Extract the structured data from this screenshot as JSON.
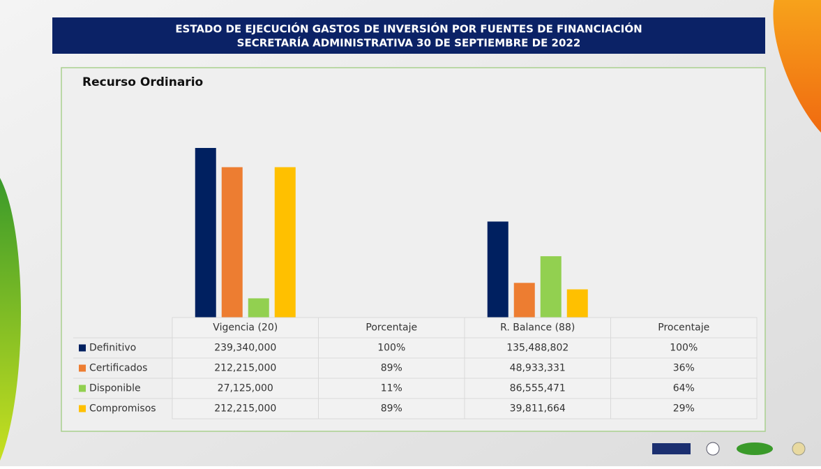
{
  "chart_data": {
    "type": "bar",
    "title": "ESTADO DE EJECUCIÓN  GASTOS DE INVERSIÓN POR FUENTES DE FINANCIACIÓN",
    "subtitle": "SECRETARÍA ADMINISTRATIVA 30 DE SEPTIEMBRE DE 2022",
    "chart_title": "Recurso Ordinario",
    "categories": [
      "Vigencia (20)",
      "Porcentaje",
      "R. Balance (88)",
      "Procentaje"
    ],
    "series": [
      {
        "name": "Definitivo",
        "color": "#002060",
        "values": [
          239340000,
          100,
          135488802,
          100
        ],
        "value_labels": [
          "239,340,000",
          "100%",
          "135,488,802",
          "100%"
        ]
      },
      {
        "name": "Certificados",
        "color": "#ED7D31",
        "values": [
          212215000,
          89,
          48933331,
          36
        ],
        "value_labels": [
          "212,215,000",
          "89%",
          "48,933,331",
          "36%"
        ]
      },
      {
        "name": "Disponible",
        "color": "#92D050",
        "values": [
          27125000,
          11,
          86555471,
          64
        ],
        "value_labels": [
          "27,125,000",
          "11%",
          "86,555,471",
          "64%"
        ]
      },
      {
        "name": "Compromisos",
        "color": "#FFC000",
        "values": [
          212215000,
          89,
          39811664,
          29
        ],
        "value_labels": [
          "212,215,000",
          "89%",
          "39,811,664",
          "29%"
        ]
      }
    ]
  }
}
